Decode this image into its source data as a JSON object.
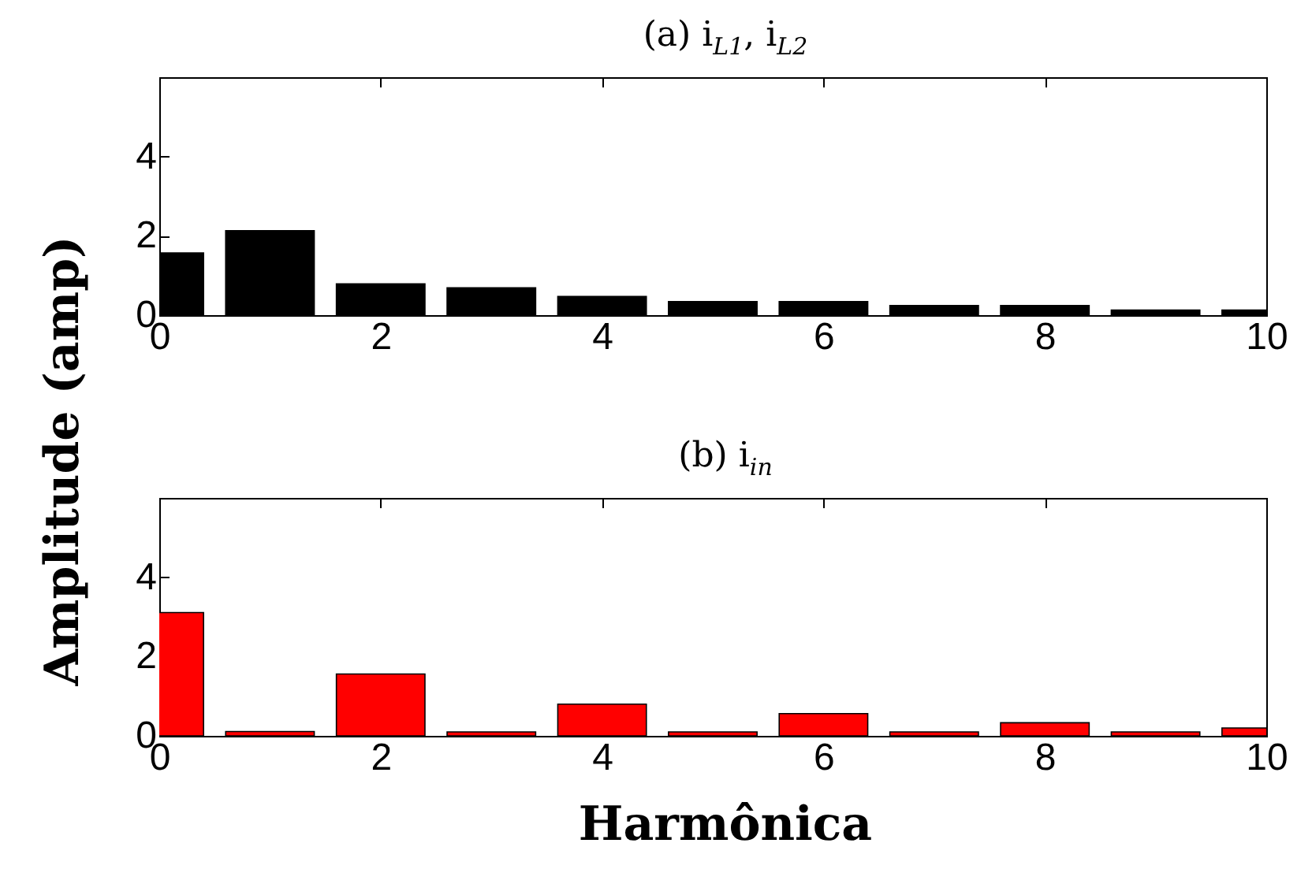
{
  "chart_data": [
    {
      "type": "bar",
      "title": "(a) i$_{L1}$, i$_{L2}$",
      "ylabel": "Amplitude (amp)",
      "x": [
        0,
        1,
        2,
        3,
        4,
        5,
        6,
        7,
        8,
        9,
        10
      ],
      "series": [
        {
          "color": "#000000",
          "values": [
            1.57,
            2.13,
            0.79,
            0.69,
            0.47,
            0.34,
            0.34,
            0.24,
            0.24,
            0.13,
            0.13
          ]
        }
      ],
      "xlim": [
        0,
        10
      ],
      "xticks": [
        0,
        2,
        4,
        6,
        8,
        10
      ],
      "ylim": [
        0,
        6
      ],
      "yticks": [
        0,
        2,
        4
      ],
      "grid": false
    },
    {
      "type": "bar",
      "title": "(b) i$_{in}$",
      "xlabel": "Harmônica",
      "x": [
        0,
        1,
        2,
        3,
        4,
        5,
        6,
        7,
        8,
        9,
        10
      ],
      "series": [
        {
          "color": "#ff0000",
          "values": [
            3.11,
            0.11,
            1.56,
            0.1,
            0.8,
            0.1,
            0.56,
            0.1,
            0.33,
            0.1,
            0.2
          ]
        }
      ],
      "xlim": [
        0,
        10
      ],
      "xticks": [
        0,
        2,
        4,
        6,
        8,
        10
      ],
      "ylim": [
        0,
        6
      ],
      "yticks": [
        0,
        2,
        4
      ],
      "grid": false
    }
  ]
}
